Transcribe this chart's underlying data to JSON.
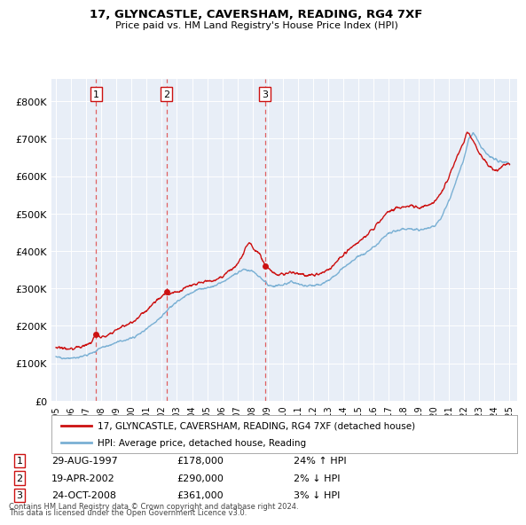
{
  "title1": "17, GLYNCASTLE, CAVERSHAM, READING, RG4 7XF",
  "title2": "Price paid vs. HM Land Registry's House Price Index (HPI)",
  "plot_bg_color": "#e8eef7",
  "sale_prices": [
    178000,
    290000,
    361000
  ],
  "sale_labels": [
    "1",
    "2",
    "3"
  ],
  "sale_year_nums": [
    1997.66,
    2002.3,
    2008.81
  ],
  "vertical_line_dates": [
    1997.66,
    2002.3,
    2008.81
  ],
  "legend_property": "17, GLYNCASTLE, CAVERSHAM, READING, RG4 7XF (detached house)",
  "legend_hpi": "HPI: Average price, detached house, Reading",
  "table_rows": [
    [
      "1",
      "29-AUG-1997",
      "£178,000",
      "24% ↑ HPI"
    ],
    [
      "2",
      "19-APR-2002",
      "£290,000",
      "2% ↓ HPI"
    ],
    [
      "3",
      "24-OCT-2008",
      "£361,000",
      "3% ↓ HPI"
    ]
  ],
  "footnote1": "Contains HM Land Registry data © Crown copyright and database right 2024.",
  "footnote2": "This data is licensed under the Open Government Licence v3.0.",
  "ylim": [
    0,
    860000
  ],
  "yticks": [
    0,
    100000,
    200000,
    300000,
    400000,
    500000,
    600000,
    700000,
    800000
  ],
  "xlim_start": 1994.7,
  "xlim_end": 2025.5,
  "red_color": "#cc1111",
  "blue_color": "#7ab0d4",
  "vline_color": "#e06060",
  "box_edge_color": "#cc1111"
}
